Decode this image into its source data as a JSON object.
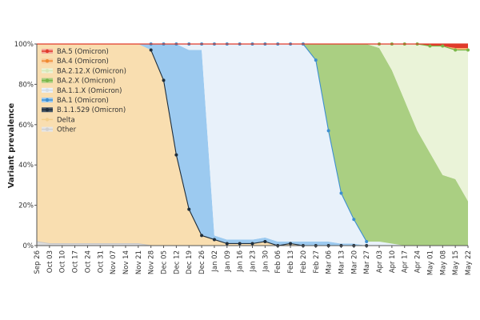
{
  "chart_data": {
    "type": "area",
    "stacked": true,
    "ylabel": "Variant prevalence",
    "ylim": [
      0,
      100
    ],
    "yticks": [
      "0%",
      "20%",
      "40%",
      "60%",
      "80%",
      "100%"
    ],
    "categories": [
      "Sep 26",
      "Oct 03",
      "Oct 10",
      "Oct 17",
      "Oct 24",
      "Oct 31",
      "Nov 07",
      "Nov 14",
      "Nov 21",
      "Nov 28",
      "Dec 05",
      "Dec 12",
      "Dec 19",
      "Dec 26",
      "Jan 02",
      "Jan 09",
      "Jan 16",
      "Jan 23",
      "Jan 30",
      "Feb 06",
      "Feb 13",
      "Feb 20",
      "Feb 27",
      "Mar 06",
      "Mar 13",
      "Mar 20",
      "Mar 27",
      "Apr 03",
      "Apr 10",
      "Apr 17",
      "Apr 24",
      "May 01",
      "May 08",
      "May 15",
      "May 22"
    ],
    "legend": {
      "placement": "top-left"
    },
    "series": [
      {
        "name": "Other",
        "color": "#dcdcdc",
        "values": [
          2,
          1,
          1,
          1,
          1,
          1,
          1,
          1,
          1,
          0,
          0,
          0,
          0,
          0,
          0,
          0,
          0,
          0,
          0,
          0,
          0,
          0,
          0,
          0,
          0,
          0,
          0,
          0,
          0,
          0,
          0,
          0,
          0,
          0,
          0
        ]
      },
      {
        "name": "B.1.1.529 (Omicron)",
        "color": "#2b3b4b",
        "values": [
          0,
          0,
          0,
          0,
          0,
          0,
          0,
          0,
          0,
          0,
          0,
          0,
          0,
          0,
          0,
          0,
          0,
          0,
          0,
          0,
          0,
          0,
          0,
          0,
          0,
          0,
          0,
          0,
          0,
          0,
          0,
          0,
          0,
          0,
          0
        ]
      },
      {
        "name": "Delta",
        "color": "#f9deb0",
        "values": [
          98,
          99,
          99,
          99,
          99,
          99,
          99,
          99,
          99,
          97,
          82,
          45,
          18,
          5,
          3,
          1,
          1,
          1,
          2,
          0,
          1,
          0,
          0,
          0,
          0,
          0,
          0,
          0,
          0,
          0,
          0,
          0,
          0,
          0,
          0
        ]
      },
      {
        "name": "BA.1 (Omicron)",
        "color": "#9ccaf0",
        "values": [
          0,
          0,
          0,
          0,
          0,
          0,
          0,
          0,
          0,
          3,
          18,
          55,
          79,
          92,
          2,
          2,
          2,
          2,
          2,
          2,
          1,
          2,
          2,
          2,
          1,
          1,
          0,
          0,
          0,
          0,
          0,
          0,
          0,
          0,
          0
        ]
      },
      {
        "name": "BA.1.1.X (Omicron)",
        "color": "#e8f1fa",
        "values": [
          0,
          0,
          0,
          0,
          0,
          0,
          0,
          0,
          0,
          0,
          0,
          0,
          3,
          3,
          95,
          97,
          97,
          97,
          96,
          98,
          98,
          98,
          90,
          55,
          25,
          12,
          2,
          2,
          1,
          0,
          0,
          0,
          0,
          0,
          0
        ]
      },
      {
        "name": "BA.2.X (Omicron)",
        "color": "#aacf82",
        "values": [
          0,
          0,
          0,
          0,
          0,
          0,
          0,
          0,
          0,
          0,
          0,
          0,
          0,
          0,
          0,
          0,
          0,
          0,
          0,
          0,
          0,
          0,
          8,
          43,
          74,
          87,
          98,
          96,
          86,
          72,
          57,
          46,
          35,
          33,
          22
        ]
      },
      {
        "name": "BA.2.12.X (Omicron)",
        "color": "#eaf3d8",
        "values": [
          0,
          0,
          0,
          0,
          0,
          0,
          0,
          0,
          0,
          0,
          0,
          0,
          0,
          0,
          0,
          0,
          0,
          0,
          0,
          0,
          0,
          0,
          0,
          0,
          0,
          0,
          0,
          2,
          13,
          28,
          43,
          53,
          64,
          64,
          75
        ]
      },
      {
        "name": "BA.4 (Omicron)",
        "color": "#f8b070",
        "values": [
          0,
          0,
          0,
          0,
          0,
          0,
          0,
          0,
          0,
          0,
          0,
          0,
          0,
          0,
          0,
          0,
          0,
          0,
          0,
          0,
          0,
          0,
          0,
          0,
          0,
          0,
          0,
          0,
          0,
          0,
          0,
          0,
          0,
          1,
          1
        ]
      },
      {
        "name": "BA.5 (Omicron)",
        "color": "#e03a2a",
        "values": [
          0,
          0,
          0,
          0,
          0,
          0,
          0,
          0,
          0,
          0,
          0,
          0,
          0,
          0,
          0,
          0,
          0,
          0,
          0,
          0,
          0,
          0,
          0,
          0,
          0,
          0,
          0,
          0,
          0,
          0,
          0,
          1,
          1,
          2,
          2
        ]
      }
    ],
    "marker_series": [
      {
        "name": "BA.1 (Omicron)",
        "color": "#3d8fd0",
        "base": "BA.1.1.X (Omicron)",
        "from": 9,
        "to": 26
      },
      {
        "name": "B.1.1.529 (Omicron)",
        "color": "#1f2d3a",
        "base": "Delta",
        "from": 9,
        "to": 26
      },
      {
        "name": "BA.2.X (Omicron)",
        "color": "#7ab648",
        "base": "BA.2.12.X (Omicron)",
        "from": 27,
        "to": 34
      }
    ],
    "legend_order": [
      "BA.5 (Omicron)",
      "BA.4 (Omicron)",
      "BA.2.12.X (Omicron)",
      "BA.2.X (Omicron)",
      "BA.1.1.X (Omicron)",
      "BA.1 (Omicron)",
      "B.1.1.529 (Omicron)",
      "Delta",
      "Other"
    ],
    "legend_icons": {
      "BA.5 (Omicron)": {
        "fill": "#f4a79a",
        "stroke": "#e03a2a"
      },
      "BA.4 (Omicron)": {
        "fill": "#f9c99a",
        "stroke": "#f08a30"
      },
      "BA.2.12.X (Omicron)": {
        "fill": "#eaf3d8",
        "stroke": "#d6e8b8"
      },
      "BA.2.X (Omicron)": {
        "fill": "#aacf82",
        "stroke": "#7ab648"
      },
      "BA.1.1.X (Omicron)": {
        "fill": "#e8f1fa",
        "stroke": "#d4dde6"
      },
      "BA.1 (Omicron)": {
        "fill": "#9ccaf0",
        "stroke": "#3d8fd0"
      },
      "B.1.1.529 (Omicron)": {
        "fill": "#4a5866",
        "stroke": "#1f2d3a"
      },
      "Delta": {
        "fill": "#f9deb0",
        "stroke": "#f3cf8c"
      },
      "Other": {
        "fill": "#e6e6e6",
        "stroke": "#d0d0d0"
      }
    }
  }
}
